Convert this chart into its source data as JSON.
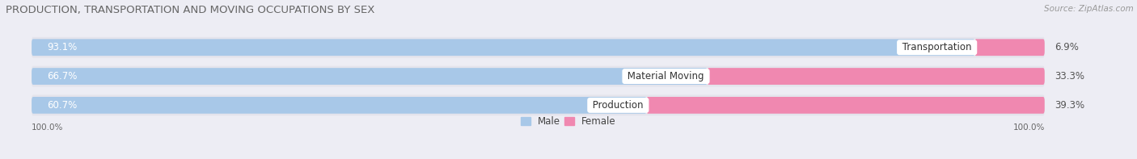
{
  "title": "PRODUCTION, TRANSPORTATION AND MOVING OCCUPATIONS BY SEX",
  "source_text": "Source: ZipAtlas.com",
  "categories": [
    "Transportation",
    "Material Moving",
    "Production"
  ],
  "male_values": [
    93.1,
    66.7,
    60.7
  ],
  "female_values": [
    6.9,
    33.3,
    39.3
  ],
  "male_color": "#a8c8e8",
  "female_color": "#f088b0",
  "bar_bg_color": "#e4e4ec",
  "bg_color": "#ededf4",
  "title_color": "#666666",
  "source_color": "#999999",
  "title_fontsize": 9.5,
  "label_fontsize": 8.5,
  "bar_label_fontsize": 8.5,
  "legend_fontsize": 8.5,
  "axis_label": "100.0%",
  "bar_height": 0.58,
  "bar_rounding": 0.15
}
